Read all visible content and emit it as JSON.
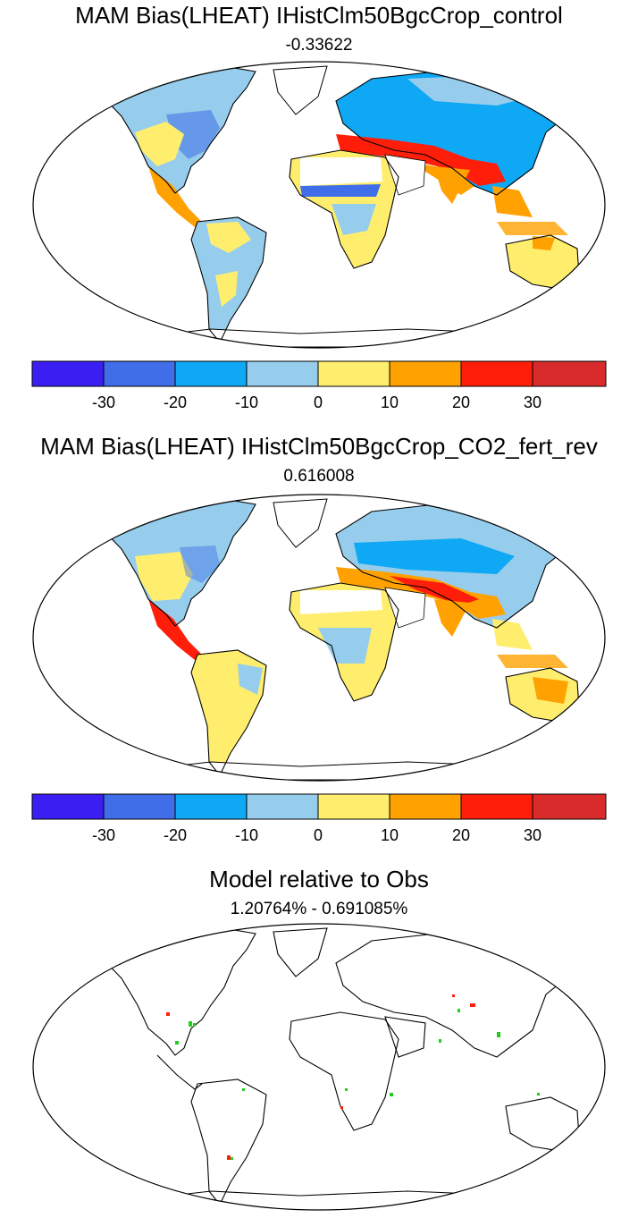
{
  "panels": [
    {
      "title": "MAM Bias(LHEAT) IHistClm50BgcCrop_control",
      "subtitle": "-0.33622"
    },
    {
      "title": "MAM Bias(LHEAT) IHistClm50BgcCrop_CO2_fert_rev",
      "subtitle": "0.616008"
    },
    {
      "title": "Model relative to Obs",
      "subtitle": "1.20764% - 0.691085%"
    }
  ],
  "colorbar": {
    "colors": [
      "#3b1ff2",
      "#3f6ee8",
      "#0fa8f5",
      "#96cdec",
      "#ffee6e",
      "#ffa100",
      "#ff1e0a",
      "#d92b2b"
    ],
    "tick_labels": [
      "-30",
      "-20",
      "-10",
      "0",
      "10",
      "20",
      "30"
    ]
  }
}
